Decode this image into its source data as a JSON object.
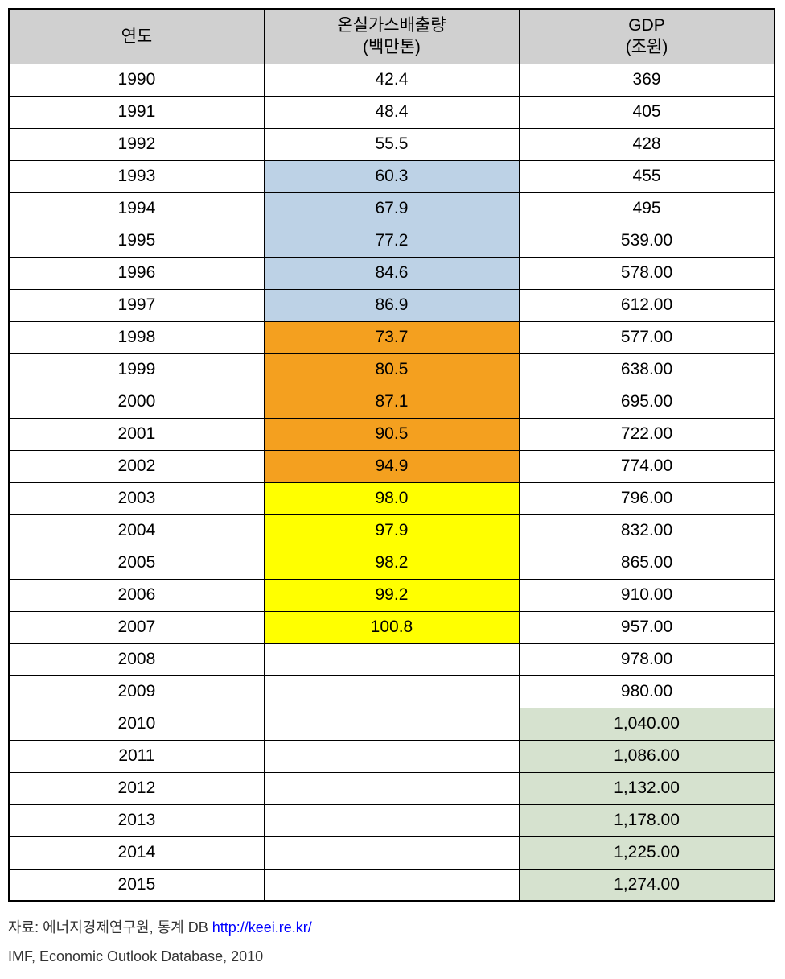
{
  "table": {
    "columns": [
      {
        "header_line1": "연도",
        "header_line2": ""
      },
      {
        "header_line1": "온실가스배출량",
        "header_line2": "(백만톤)"
      },
      {
        "header_line1": "GDP",
        "header_line2": "(조원)"
      }
    ],
    "header_bg": "#d0d0d0",
    "highlight_colors": {
      "blue": "#bdd2e6",
      "orange": "#f4a01f",
      "yellow": "#ffff00",
      "green": "#d6e2cf"
    },
    "rows": [
      {
        "year": "1990",
        "emission": "42.4",
        "emission_hl": "",
        "gdp": "369",
        "gdp_hl": ""
      },
      {
        "year": "1991",
        "emission": "48.4",
        "emission_hl": "",
        "gdp": "405",
        "gdp_hl": ""
      },
      {
        "year": "1992",
        "emission": "55.5",
        "emission_hl": "",
        "gdp": "428",
        "gdp_hl": ""
      },
      {
        "year": "1993",
        "emission": "60.3",
        "emission_hl": "blue",
        "gdp": "455",
        "gdp_hl": ""
      },
      {
        "year": "1994",
        "emission": "67.9",
        "emission_hl": "blue",
        "gdp": "495",
        "gdp_hl": ""
      },
      {
        "year": "1995",
        "emission": "77.2",
        "emission_hl": "blue",
        "gdp": "539.00",
        "gdp_hl": ""
      },
      {
        "year": "1996",
        "emission": "84.6",
        "emission_hl": "blue",
        "gdp": "578.00",
        "gdp_hl": ""
      },
      {
        "year": "1997",
        "emission": "86.9",
        "emission_hl": "blue",
        "gdp": "612.00",
        "gdp_hl": ""
      },
      {
        "year": "1998",
        "emission": "73.7",
        "emission_hl": "orange",
        "gdp": "577.00",
        "gdp_hl": ""
      },
      {
        "year": "1999",
        "emission": "80.5",
        "emission_hl": "orange",
        "gdp": "638.00",
        "gdp_hl": ""
      },
      {
        "year": "2000",
        "emission": "87.1",
        "emission_hl": "orange",
        "gdp": "695.00",
        "gdp_hl": ""
      },
      {
        "year": "2001",
        "emission": "90.5",
        "emission_hl": "orange",
        "gdp": "722.00",
        "gdp_hl": ""
      },
      {
        "year": "2002",
        "emission": "94.9",
        "emission_hl": "orange",
        "gdp": "774.00",
        "gdp_hl": ""
      },
      {
        "year": "2003",
        "emission": "98.0",
        "emission_hl": "yellow",
        "gdp": "796.00",
        "gdp_hl": ""
      },
      {
        "year": "2004",
        "emission": "97.9",
        "emission_hl": "yellow",
        "gdp": "832.00",
        "gdp_hl": ""
      },
      {
        "year": "2005",
        "emission": "98.2",
        "emission_hl": "yellow",
        "gdp": "865.00",
        "gdp_hl": ""
      },
      {
        "year": "2006",
        "emission": "99.2",
        "emission_hl": "yellow",
        "gdp": "910.00",
        "gdp_hl": ""
      },
      {
        "year": "2007",
        "emission": "100.8",
        "emission_hl": "yellow",
        "gdp": "957.00",
        "gdp_hl": ""
      },
      {
        "year": "2008",
        "emission": "",
        "emission_hl": "",
        "gdp": "978.00",
        "gdp_hl": ""
      },
      {
        "year": "2009",
        "emission": "",
        "emission_hl": "",
        "gdp": "980.00",
        "gdp_hl": ""
      },
      {
        "year": "2010",
        "emission": "",
        "emission_hl": "",
        "gdp": "1,040.00",
        "gdp_hl": "green"
      },
      {
        "year": "2011",
        "emission": "",
        "emission_hl": "",
        "gdp": "1,086.00",
        "gdp_hl": "green"
      },
      {
        "year": "2012",
        "emission": "",
        "emission_hl": "",
        "gdp": "1,132.00",
        "gdp_hl": "green"
      },
      {
        "year": "2013",
        "emission": "",
        "emission_hl": "",
        "gdp": "1,178.00",
        "gdp_hl": "green"
      },
      {
        "year": "2014",
        "emission": "",
        "emission_hl": "",
        "gdp": "1,225.00",
        "gdp_hl": "green"
      },
      {
        "year": "2015",
        "emission": "",
        "emission_hl": "",
        "gdp": "1,274.00",
        "gdp_hl": "green"
      }
    ]
  },
  "footnotes": {
    "line1_prefix": "자료: 에너지경제연구원, 통계 DB ",
    "line1_link": "http://keei.re.kr/",
    "line2": "IMF, Economic Outlook Database, 2010"
  },
  "font_sizes": {
    "table_cell": 21,
    "footnote": 18
  },
  "border_color": "#000000",
  "background_color": "#ffffff"
}
